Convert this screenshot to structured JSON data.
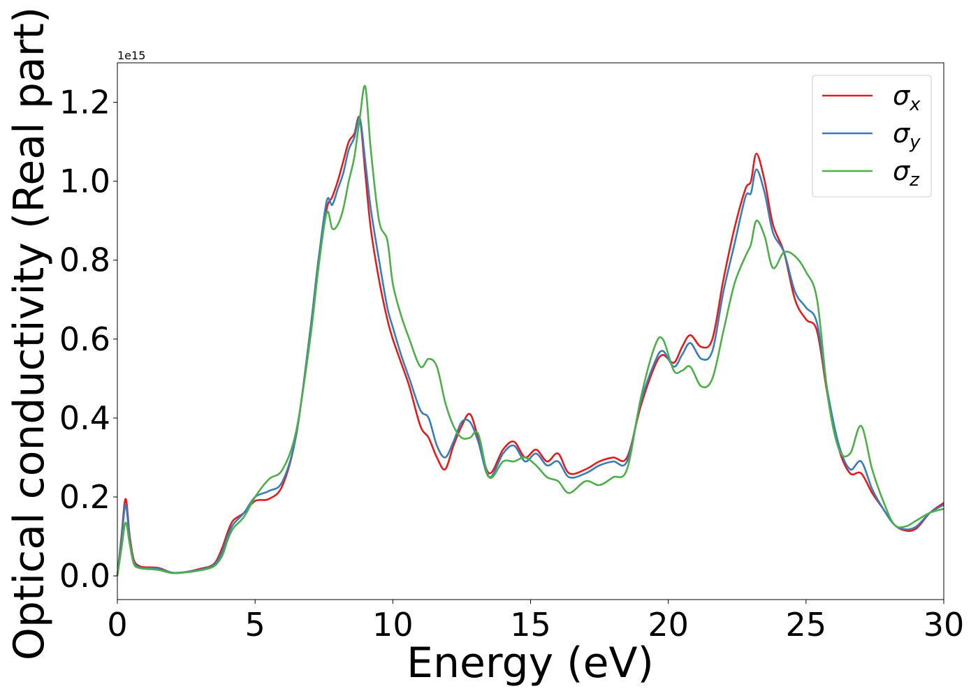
{
  "chart_data": {
    "type": "line",
    "xlabel": "Energy (eV)",
    "ylabel": "Optical conductivity (Real part)",
    "y_offset_text": "1e15",
    "y_scale_factor": 1000000000000000.0,
    "xlim": [
      0,
      30
    ],
    "ylim": [
      -0.06,
      1.3
    ],
    "x_ticks": [
      0,
      5,
      10,
      15,
      20,
      25,
      30
    ],
    "y_ticks": [
      0.0,
      0.2,
      0.4,
      0.6,
      0.8,
      1.0,
      1.2
    ],
    "y_tick_labels": [
      "0.0",
      "0.2",
      "0.4",
      "0.6",
      "0.8",
      "1.0",
      "1.2"
    ],
    "grid": false,
    "legend_position": "top-right",
    "series": [
      {
        "name": "σx",
        "name_base": "σ",
        "name_sub": "x",
        "color": "#e41a1c",
        "points": [
          [
            0,
            0.0
          ],
          [
            0.15,
            0.1
          ],
          [
            0.3,
            0.195
          ],
          [
            0.45,
            0.1
          ],
          [
            0.6,
            0.04
          ],
          [
            0.8,
            0.025
          ],
          [
            1.0,
            0.022
          ],
          [
            1.5,
            0.02
          ],
          [
            2.0,
            0.008
          ],
          [
            2.5,
            0.01
          ],
          [
            3.0,
            0.018
          ],
          [
            3.5,
            0.03
          ],
          [
            3.8,
            0.07
          ],
          [
            4.0,
            0.11
          ],
          [
            4.2,
            0.14
          ],
          [
            4.6,
            0.16
          ],
          [
            5.0,
            0.19
          ],
          [
            5.5,
            0.195
          ],
          [
            6.0,
            0.23
          ],
          [
            6.5,
            0.36
          ],
          [
            7.0,
            0.62
          ],
          [
            7.3,
            0.8
          ],
          [
            7.6,
            0.93
          ],
          [
            7.8,
            0.96
          ],
          [
            8.0,
            1.0
          ],
          [
            8.2,
            1.05
          ],
          [
            8.4,
            1.1
          ],
          [
            8.6,
            1.12
          ],
          [
            8.8,
            1.16
          ],
          [
            9.0,
            1.02
          ],
          [
            9.2,
            0.88
          ],
          [
            9.5,
            0.75
          ],
          [
            9.8,
            0.65
          ],
          [
            10.0,
            0.6
          ],
          [
            10.3,
            0.54
          ],
          [
            10.6,
            0.48
          ],
          [
            11.0,
            0.38
          ],
          [
            11.3,
            0.35
          ],
          [
            11.6,
            0.3
          ],
          [
            11.9,
            0.27
          ],
          [
            12.2,
            0.33
          ],
          [
            12.5,
            0.38
          ],
          [
            12.8,
            0.41
          ],
          [
            13.1,
            0.35
          ],
          [
            13.5,
            0.26
          ],
          [
            14.0,
            0.32
          ],
          [
            14.4,
            0.34
          ],
          [
            14.8,
            0.3
          ],
          [
            15.2,
            0.32
          ],
          [
            15.6,
            0.29
          ],
          [
            16.0,
            0.31
          ],
          [
            16.4,
            0.26
          ],
          [
            17.0,
            0.27
          ],
          [
            17.5,
            0.29
          ],
          [
            18.0,
            0.3
          ],
          [
            18.5,
            0.3
          ],
          [
            19.0,
            0.43
          ],
          [
            19.5,
            0.53
          ],
          [
            19.8,
            0.56
          ],
          [
            20.2,
            0.54
          ],
          [
            20.5,
            0.58
          ],
          [
            20.8,
            0.61
          ],
          [
            21.2,
            0.58
          ],
          [
            21.6,
            0.6
          ],
          [
            22.0,
            0.75
          ],
          [
            22.4,
            0.88
          ],
          [
            22.8,
            0.98
          ],
          [
            23.0,
            1.0
          ],
          [
            23.2,
            1.07
          ],
          [
            23.5,
            1.0
          ],
          [
            23.8,
            0.89
          ],
          [
            24.2,
            0.82
          ],
          [
            24.6,
            0.7
          ],
          [
            25.0,
            0.65
          ],
          [
            25.4,
            0.62
          ],
          [
            25.8,
            0.45
          ],
          [
            26.2,
            0.32
          ],
          [
            26.6,
            0.26
          ],
          [
            27.0,
            0.26
          ],
          [
            27.4,
            0.21
          ],
          [
            27.8,
            0.17
          ],
          [
            28.2,
            0.13
          ],
          [
            28.6,
            0.115
          ],
          [
            29.0,
            0.12
          ],
          [
            29.5,
            0.16
          ],
          [
            30.0,
            0.185
          ]
        ]
      },
      {
        "name": "σy",
        "name_base": "σ",
        "name_sub": "y",
        "color": "#377eb8",
        "points": [
          [
            0,
            0.0
          ],
          [
            0.15,
            0.09
          ],
          [
            0.3,
            0.18
          ],
          [
            0.45,
            0.09
          ],
          [
            0.6,
            0.035
          ],
          [
            0.8,
            0.022
          ],
          [
            1.0,
            0.02
          ],
          [
            1.5,
            0.018
          ],
          [
            2.0,
            0.008
          ],
          [
            2.5,
            0.01
          ],
          [
            3.0,
            0.016
          ],
          [
            3.5,
            0.028
          ],
          [
            3.8,
            0.06
          ],
          [
            4.0,
            0.1
          ],
          [
            4.2,
            0.13
          ],
          [
            4.6,
            0.16
          ],
          [
            5.0,
            0.2
          ],
          [
            5.5,
            0.215
          ],
          [
            6.0,
            0.24
          ],
          [
            6.5,
            0.36
          ],
          [
            7.0,
            0.62
          ],
          [
            7.3,
            0.8
          ],
          [
            7.6,
            0.95
          ],
          [
            7.8,
            0.94
          ],
          [
            8.0,
            0.98
          ],
          [
            8.2,
            1.02
          ],
          [
            8.4,
            1.08
          ],
          [
            8.6,
            1.11
          ],
          [
            8.8,
            1.16
          ],
          [
            9.0,
            1.05
          ],
          [
            9.2,
            0.93
          ],
          [
            9.5,
            0.8
          ],
          [
            9.8,
            0.68
          ],
          [
            10.0,
            0.63
          ],
          [
            10.3,
            0.56
          ],
          [
            10.6,
            0.5
          ],
          [
            11.0,
            0.42
          ],
          [
            11.3,
            0.4
          ],
          [
            11.6,
            0.33
          ],
          [
            11.9,
            0.3
          ],
          [
            12.2,
            0.34
          ],
          [
            12.5,
            0.39
          ],
          [
            12.8,
            0.39
          ],
          [
            13.1,
            0.34
          ],
          [
            13.5,
            0.25
          ],
          [
            14.0,
            0.31
          ],
          [
            14.4,
            0.33
          ],
          [
            14.8,
            0.29
          ],
          [
            15.2,
            0.31
          ],
          [
            15.6,
            0.28
          ],
          [
            16.0,
            0.29
          ],
          [
            16.4,
            0.25
          ],
          [
            17.0,
            0.26
          ],
          [
            17.5,
            0.28
          ],
          [
            18.0,
            0.29
          ],
          [
            18.5,
            0.29
          ],
          [
            19.0,
            0.44
          ],
          [
            19.5,
            0.54
          ],
          [
            19.8,
            0.57
          ],
          [
            20.2,
            0.53
          ],
          [
            20.5,
            0.56
          ],
          [
            20.8,
            0.59
          ],
          [
            21.2,
            0.55
          ],
          [
            21.6,
            0.57
          ],
          [
            22.0,
            0.72
          ],
          [
            22.4,
            0.84
          ],
          [
            22.8,
            0.96
          ],
          [
            23.0,
            0.97
          ],
          [
            23.2,
            1.03
          ],
          [
            23.5,
            0.97
          ],
          [
            23.8,
            0.87
          ],
          [
            24.2,
            0.82
          ],
          [
            24.6,
            0.72
          ],
          [
            25.0,
            0.68
          ],
          [
            25.4,
            0.64
          ],
          [
            25.8,
            0.46
          ],
          [
            26.2,
            0.33
          ],
          [
            26.6,
            0.27
          ],
          [
            27.0,
            0.29
          ],
          [
            27.4,
            0.22
          ],
          [
            27.8,
            0.17
          ],
          [
            28.2,
            0.13
          ],
          [
            28.6,
            0.118
          ],
          [
            29.0,
            0.125
          ],
          [
            29.5,
            0.16
          ],
          [
            30.0,
            0.18
          ]
        ]
      },
      {
        "name": "σz",
        "name_base": "σ",
        "name_sub": "z",
        "color": "#4daf4a",
        "points": [
          [
            0,
            0.0
          ],
          [
            0.15,
            0.07
          ],
          [
            0.3,
            0.135
          ],
          [
            0.45,
            0.08
          ],
          [
            0.6,
            0.03
          ],
          [
            0.8,
            0.02
          ],
          [
            1.0,
            0.018
          ],
          [
            1.5,
            0.015
          ],
          [
            2.0,
            0.007
          ],
          [
            2.5,
            0.009
          ],
          [
            3.0,
            0.014
          ],
          [
            3.5,
            0.024
          ],
          [
            3.8,
            0.05
          ],
          [
            4.0,
            0.09
          ],
          [
            4.2,
            0.12
          ],
          [
            4.6,
            0.15
          ],
          [
            5.0,
            0.2
          ],
          [
            5.5,
            0.245
          ],
          [
            6.0,
            0.27
          ],
          [
            6.5,
            0.37
          ],
          [
            7.0,
            0.6
          ],
          [
            7.3,
            0.78
          ],
          [
            7.6,
            0.92
          ],
          [
            7.8,
            0.88
          ],
          [
            8.0,
            0.89
          ],
          [
            8.2,
            0.93
          ],
          [
            8.4,
            1.0
          ],
          [
            8.6,
            1.06
          ],
          [
            8.8,
            1.16
          ],
          [
            9.0,
            1.24
          ],
          [
            9.2,
            1.08
          ],
          [
            9.5,
            0.9
          ],
          [
            9.8,
            0.85
          ],
          [
            10.0,
            0.74
          ],
          [
            10.3,
            0.66
          ],
          [
            10.6,
            0.6
          ],
          [
            11.0,
            0.53
          ],
          [
            11.3,
            0.55
          ],
          [
            11.6,
            0.53
          ],
          [
            11.9,
            0.44
          ],
          [
            12.2,
            0.38
          ],
          [
            12.5,
            0.35
          ],
          [
            12.8,
            0.35
          ],
          [
            13.1,
            0.36
          ],
          [
            13.5,
            0.25
          ],
          [
            14.0,
            0.29
          ],
          [
            14.4,
            0.29
          ],
          [
            14.8,
            0.3
          ],
          [
            15.2,
            0.28
          ],
          [
            15.6,
            0.25
          ],
          [
            16.0,
            0.24
          ],
          [
            16.4,
            0.21
          ],
          [
            17.0,
            0.24
          ],
          [
            17.5,
            0.23
          ],
          [
            18.0,
            0.25
          ],
          [
            18.5,
            0.27
          ],
          [
            19.0,
            0.45
          ],
          [
            19.5,
            0.58
          ],
          [
            19.8,
            0.6
          ],
          [
            20.2,
            0.52
          ],
          [
            20.5,
            0.52
          ],
          [
            20.8,
            0.53
          ],
          [
            21.2,
            0.48
          ],
          [
            21.6,
            0.5
          ],
          [
            22.0,
            0.62
          ],
          [
            22.4,
            0.74
          ],
          [
            22.8,
            0.81
          ],
          [
            23.0,
            0.84
          ],
          [
            23.2,
            0.9
          ],
          [
            23.5,
            0.86
          ],
          [
            23.8,
            0.78
          ],
          [
            24.2,
            0.82
          ],
          [
            24.6,
            0.81
          ],
          [
            25.0,
            0.77
          ],
          [
            25.4,
            0.7
          ],
          [
            25.8,
            0.45
          ],
          [
            26.2,
            0.32
          ],
          [
            26.6,
            0.31
          ],
          [
            27.0,
            0.38
          ],
          [
            27.4,
            0.27
          ],
          [
            27.8,
            0.19
          ],
          [
            28.2,
            0.13
          ],
          [
            28.6,
            0.125
          ],
          [
            29.0,
            0.14
          ],
          [
            29.5,
            0.16
          ],
          [
            30.0,
            0.17
          ]
        ]
      }
    ]
  }
}
